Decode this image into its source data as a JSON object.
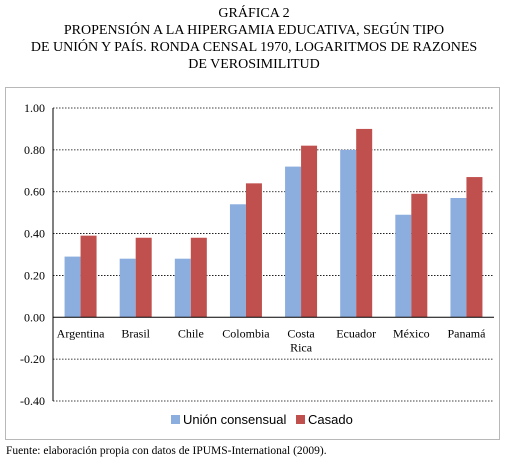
{
  "header": {
    "line1": "GRÁFICA 2",
    "line2": "PROPENSIÓN A LA HIPERGAMIA EDUCATIVA, SEGÚN TIPO",
    "line3": "DE UNIÓN Y PAÍS. RONDA CENSAL 1970, LOGARITMOS DE RAZONES",
    "line4": "DE VEROSIMILITUD"
  },
  "footer": {
    "source": "Fuente: elaboración propia con datos de IPUMS-International (2009)."
  },
  "colors": {
    "union_consensual": "#8caede",
    "casado": "#c0504d",
    "gridline": "#000000",
    "frame": "#b8b8b8"
  },
  "chart_data": {
    "type": "bar",
    "title": "PROPENSIÓN A LA HIPERGAMIA EDUCATIVA, SEGÚN TIPO DE UNIÓN Y PAÍS. RONDA CENSAL 1970, LOGARITMOS DE RAZONES DE VEROSIMILITUD",
    "categories": [
      [
        "Argentina"
      ],
      [
        "Brasil"
      ],
      [
        "Chile"
      ],
      [
        "Colombia"
      ],
      [
        "Costa",
        "Rica"
      ],
      [
        "Ecuador"
      ],
      [
        "México"
      ],
      [
        "Panamá"
      ]
    ],
    "series": [
      {
        "name": "Unión consensual",
        "values": [
          0.29,
          0.28,
          0.28,
          0.54,
          0.72,
          0.8,
          0.49,
          0.57
        ]
      },
      {
        "name": "Casado",
        "values": [
          0.39,
          0.38,
          0.38,
          0.64,
          0.82,
          0.9,
          0.59,
          0.67
        ]
      }
    ],
    "ylim": [
      -0.4,
      1.0
    ],
    "yticks": [
      "-0.40",
      "-0.20",
      "0.00",
      "0.20",
      "0.40",
      "0.60",
      "0.80",
      "1.00"
    ],
    "ytick_values": [
      -0.4,
      -0.2,
      0.0,
      0.2,
      0.4,
      0.6,
      0.8,
      1.0
    ],
    "grid": true,
    "legend_position": "bottom",
    "xlabel": "",
    "ylabel": ""
  }
}
